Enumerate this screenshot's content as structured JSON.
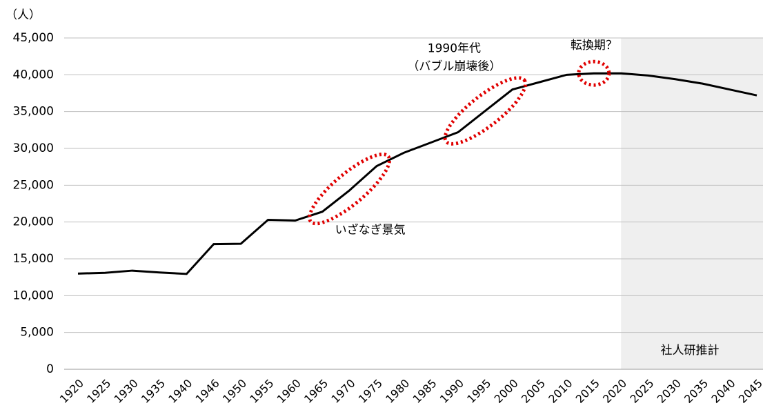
{
  "chart_data": {
    "type": "line",
    "y_unit": "（人）",
    "categories": [
      "1920",
      "1925",
      "1930",
      "1935",
      "1940",
      "1946",
      "1950",
      "1955",
      "1960",
      "1965",
      "1970",
      "1975",
      "1980",
      "1985",
      "1990",
      "1995",
      "2000",
      "2005",
      "2010",
      "2015",
      "2020",
      "2025",
      "2030",
      "2035",
      "2040",
      "2045"
    ],
    "series": [
      {
        "color": "#000000",
        "values": [
          13000,
          13100,
          13400,
          13150,
          12950,
          17000,
          17050,
          20300,
          20200,
          21400,
          24300,
          27600,
          29400,
          30800,
          32200,
          35100,
          38000,
          39000,
          40000,
          40200,
          40200,
          39900,
          39400,
          38800,
          38000,
          37200
        ]
      }
    ],
    "ylim": [
      0,
      45000
    ],
    "yticks": [
      0,
      {
        "value": 5000,
        "label": "5,000"
      },
      {
        "value": 10000,
        "label": "10,000"
      },
      {
        "value": 15000,
        "label": "15,000"
      },
      {
        "value": 20000,
        "label": "20,000"
      },
      {
        "value": 25000,
        "label": "25,000"
      },
      {
        "value": 30000,
        "label": "30,000"
      },
      {
        "value": 35000,
        "label": "35,000"
      },
      {
        "value": 40000,
        "label": "40,000"
      },
      {
        "value": 45000,
        "label": "45,000"
      }
    ],
    "grid": true,
    "projection": {
      "text": "社人研推計",
      "from": "2020"
    },
    "annotations": [
      {
        "lines": [
          "いざなぎ景気"
        ],
        "from": "1965",
        "to": "1975",
        "color": "#e00000"
      },
      {
        "lines": [
          "1990年代",
          "（バブル崩壊後）"
        ],
        "from": "1990",
        "to": "2000",
        "color": "#e00000"
      },
      {
        "lines": [
          "転換期？"
        ],
        "from": "2015",
        "to": "2015",
        "color": "#e00000"
      }
    ]
  }
}
